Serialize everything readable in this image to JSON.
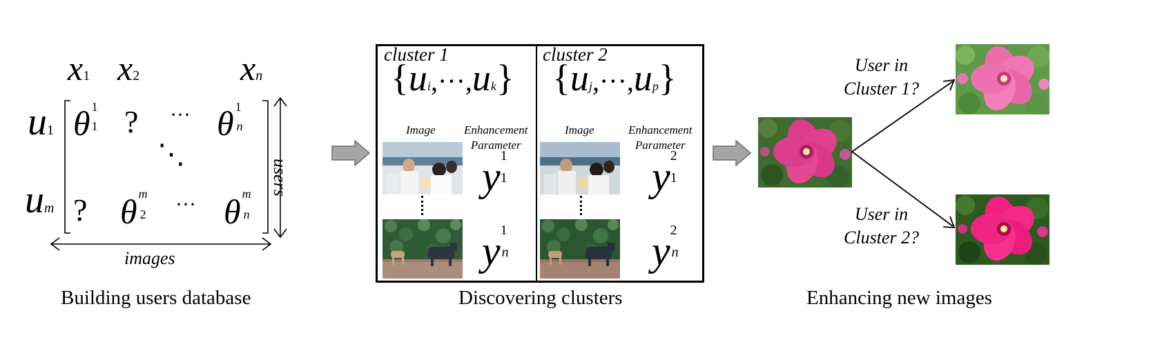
{
  "matrix": {
    "column_headers": [
      {
        "base": "x",
        "sub": "1"
      },
      {
        "base": "x",
        "sub": "2"
      },
      {
        "base": "x",
        "sub": "n"
      }
    ],
    "row_headers": [
      {
        "base": "u",
        "sub": "1"
      },
      {
        "base": "u",
        "sub": "m"
      }
    ],
    "cells": {
      "r1c1": {
        "base": "θ",
        "sup": "1",
        "sub": "1"
      },
      "r1c2": "?",
      "r1c3": "···",
      "r1c4": {
        "base": "θ",
        "sup": "1",
        "sub": "n"
      },
      "diag": "⋱",
      "rmc1": "?",
      "rmc2": {
        "base": "θ",
        "sup": "m",
        "sub": "2"
      },
      "rmc3": "···",
      "rmc4": {
        "base": "θ",
        "sup": "m",
        "sub": "n"
      }
    },
    "side_label": "users",
    "bottom_label": "images"
  },
  "clusters": [
    {
      "title": "cluster 1",
      "set": {
        "first": {
          "base": "u",
          "sub": "i"
        },
        "dots": ",···,",
        "last": {
          "base": "u",
          "sub": "k"
        }
      },
      "col_image": "Image",
      "col_param_line1": "Enhancement",
      "col_param_line2": "Parameter",
      "param_top": {
        "base": "y",
        "sup": "1",
        "sub": "1"
      },
      "param_bottom": {
        "base": "y",
        "sup": "1",
        "sub": "n"
      }
    },
    {
      "title": "cluster 2",
      "set": {
        "first": {
          "base": "u",
          "sub": "j"
        },
        "dots": ",···,",
        "last": {
          "base": "u",
          "sub": "p"
        }
      },
      "col_image": "Image",
      "col_param_line1": "Enhancement",
      "col_param_line2": "Parameter",
      "param_top": {
        "base": "y",
        "sup": "2",
        "sub": "1"
      },
      "param_bottom": {
        "base": "y",
        "sup": "2",
        "sub": "n"
      }
    }
  ],
  "enhance": {
    "question1_line1": "User in",
    "question1_line2": "Cluster 1?",
    "question2_line1": "User in",
    "question2_line2": "Cluster 2?"
  },
  "captions": {
    "left": "Building users database",
    "middle": "Discovering clusters",
    "right": "Enhancing new images"
  },
  "colors": {
    "arrow_fill": "#a6a6a6",
    "flower": "#e0408f",
    "foliage": "#3e6b2e"
  }
}
